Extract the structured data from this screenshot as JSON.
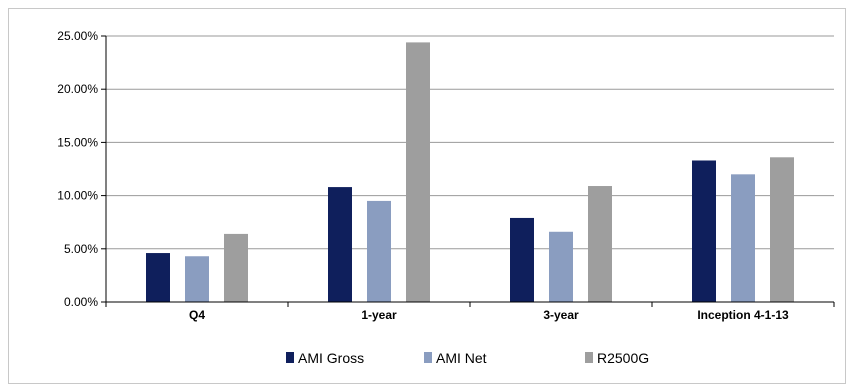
{
  "chart_data": {
    "type": "bar",
    "title": "",
    "xlabel": "",
    "ylabel": "",
    "categories": [
      "Q4",
      "1-year",
      "3-year",
      "Inception 4-1-13"
    ],
    "series": [
      {
        "name": "AMI Gross",
        "color": "#0f1f5c",
        "values": [
          4.6,
          10.8,
          7.9,
          13.3
        ]
      },
      {
        "name": "AMI Net",
        "color": "#8a9dc0",
        "values": [
          4.3,
          9.5,
          6.6,
          12.0
        ]
      },
      {
        "name": "R2500G",
        "color": "#9e9e9e",
        "values": [
          6.4,
          24.4,
          10.9,
          13.6
        ]
      }
    ],
    "ylim": [
      0,
      25
    ],
    "yticks": [
      0,
      5,
      10,
      15,
      20,
      25
    ],
    "ytick_labels": [
      "0.00%",
      "5.00%",
      "10.00%",
      "15.00%",
      "20.00%",
      "25.00%"
    ],
    "grid": true,
    "legend_position": "bottom"
  }
}
